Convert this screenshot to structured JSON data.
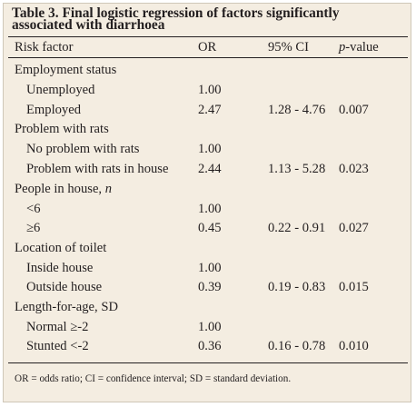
{
  "title_lines": [
    "Table 3. Final logistic regression of factors significantly",
    "associated with diarrhoea"
  ],
  "headers": {
    "factor": "Risk factor",
    "or": "OR",
    "ci": "95% CI",
    "p_italic": "p",
    "p_rest": "-value"
  },
  "groups": [
    {
      "label": "Employment status",
      "rows": [
        {
          "factor": "Unemployed",
          "or": "1.00",
          "ci": "",
          "p": ""
        },
        {
          "factor": "Employed",
          "or": "2.47",
          "ci": "1.28 - 4.76",
          "p": "0.007"
        }
      ]
    },
    {
      "label": "Problem with rats",
      "rows": [
        {
          "factor": "No problem with rats",
          "or": "1.00",
          "ci": "",
          "p": ""
        },
        {
          "factor": "Problem with rats in house",
          "or": "2.44",
          "ci": "1.13 - 5.28",
          "p": "0.023"
        }
      ]
    },
    {
      "label": "People in house, ",
      "label_italic": "n",
      "rows": [
        {
          "factor": "<6",
          "or": "1.00",
          "ci": "",
          "p": ""
        },
        {
          "factor": "≥6",
          "or": "0.45",
          "ci": "0.22 - 0.91",
          "p": "0.027"
        }
      ]
    },
    {
      "label": "Location of toilet",
      "rows": [
        {
          "factor": "Inside house",
          "or": "1.00",
          "ci": "",
          "p": ""
        },
        {
          "factor": "Outside house",
          "or": "0.39",
          "ci": "0.19 - 0.83",
          "p": "0.015"
        }
      ]
    },
    {
      "label": "Length-for-age, SD",
      "rows": [
        {
          "factor": "Normal ≥-2",
          "or": "1.00",
          "ci": "",
          "p": ""
        },
        {
          "factor": "Stunted <-2",
          "or": "0.36",
          "ci": "0.16 - 0.78",
          "p": "0.010"
        }
      ]
    }
  ],
  "footnote": "OR = odds ratio; CI = confidence interval; SD = standard deviation.",
  "colors": {
    "panel_background": "#f4ede1",
    "text": "#231f20"
  }
}
